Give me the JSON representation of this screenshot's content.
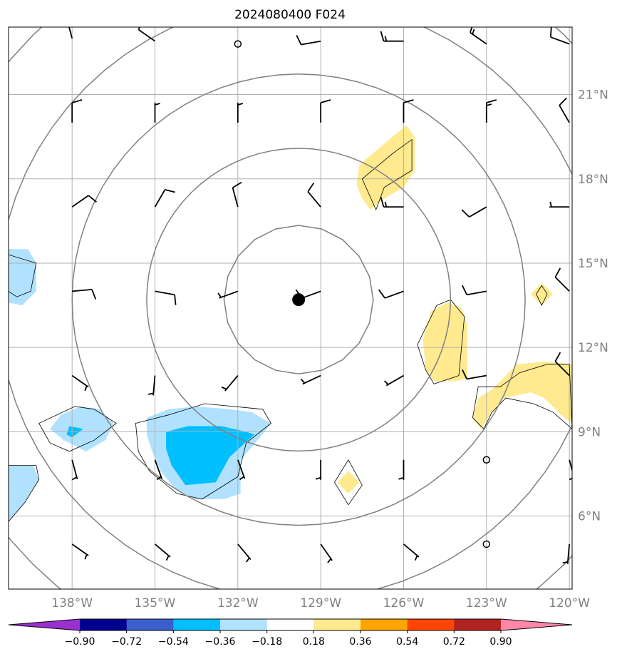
{
  "chart_data": {
    "type": "heatmap",
    "title": "2024080400 F024",
    "projection": "map with concentric range rings and wind barbs",
    "lon_range": [
      -140.3,
      -119.9
    ],
    "lat_range": [
      3.4,
      23.4
    ],
    "x_ticks": [
      {
        "value": -138,
        "label": "138°W"
      },
      {
        "value": -135,
        "label": "135°W"
      },
      {
        "value": -132,
        "label": "132°W"
      },
      {
        "value": -129,
        "label": "129°W"
      },
      {
        "value": -126,
        "label": "126°W"
      },
      {
        "value": -123,
        "label": "123°W"
      },
      {
        "value": -120,
        "label": "120°W"
      }
    ],
    "y_ticks": [
      {
        "value": 6,
        "label": "6°N"
      },
      {
        "value": 9,
        "label": "9°N"
      },
      {
        "value": 12,
        "label": "12°N"
      },
      {
        "value": 15,
        "label": "15°N"
      },
      {
        "value": 18,
        "label": "18°N"
      },
      {
        "value": 21,
        "label": "21°N"
      }
    ],
    "grid": true,
    "center_marker": {
      "lon": -129.8,
      "lat": 13.7
    },
    "range_ring_radii_deg": [
      2.7,
      5.5,
      8.2,
      10.9,
      13.6
    ],
    "colorbar": {
      "position": "bottom",
      "extend": "both",
      "levels": [
        -0.9,
        -0.72,
        -0.54,
        -0.36,
        -0.18,
        0.18,
        0.36,
        0.54,
        0.72,
        0.9
      ],
      "tick_labels": [
        "−0.90",
        "−0.72",
        "−0.54",
        "−0.36",
        "−0.18",
        "0.18",
        "0.36",
        "0.54",
        "0.72",
        "0.90"
      ],
      "colors": [
        "#9b30d0",
        "#000090",
        "#3a5fcd",
        "#00bfff",
        "#b0e2ff",
        "#ffffff",
        "#ffea8f",
        "#ffa500",
        "#ff4500",
        "#b22222",
        "#ff88aa"
      ]
    },
    "shaded_regions": [
      {
        "level": -0.18,
        "color": "#b0e2ff",
        "polygon": [
          [
            -140.3,
            15.5
          ],
          [
            -139.6,
            15.5
          ],
          [
            -139.3,
            15.0
          ],
          [
            -139.3,
            14.0
          ],
          [
            -139.8,
            13.5
          ],
          [
            -140.3,
            13.6
          ]
        ]
      },
      {
        "level": -0.18,
        "color": "#b0e2ff",
        "polygon": [
          [
            -138.4,
            9.6
          ],
          [
            -137.7,
            9.9
          ],
          [
            -137.0,
            9.8
          ],
          [
            -136.5,
            9.3
          ],
          [
            -136.8,
            8.7
          ],
          [
            -137.5,
            8.3
          ],
          [
            -138.3,
            8.7
          ],
          [
            -138.8,
            9.1
          ]
        ]
      },
      {
        "level": -0.36,
        "color": "#00bfff",
        "polygon": [
          [
            -138.1,
            9.2
          ],
          [
            -137.6,
            9.1
          ],
          [
            -138.0,
            8.8
          ],
          [
            -138.2,
            8.9
          ]
        ]
      },
      {
        "level": -0.18,
        "color": "#b0e2ff",
        "polygon": [
          [
            -135.3,
            9.5
          ],
          [
            -134.5,
            9.8
          ],
          [
            -133.5,
            9.9
          ],
          [
            -132.3,
            9.8
          ],
          [
            -131.5,
            9.7
          ],
          [
            -130.8,
            9.3
          ],
          [
            -131.2,
            8.8
          ],
          [
            -131.9,
            8.0
          ],
          [
            -131.9,
            6.8
          ],
          [
            -132.5,
            6.6
          ],
          [
            -133.5,
            6.6
          ],
          [
            -134.2,
            6.9
          ],
          [
            -134.8,
            7.6
          ],
          [
            -135.1,
            8.3
          ],
          [
            -135.3,
            8.9
          ]
        ]
      },
      {
        "level": -0.36,
        "color": "#00bfff",
        "polygon": [
          [
            -134.6,
            9.0
          ],
          [
            -133.8,
            9.2
          ],
          [
            -132.6,
            9.2
          ],
          [
            -131.7,
            9.0
          ],
          [
            -131.4,
            8.9
          ],
          [
            -132.3,
            8.1
          ],
          [
            -132.8,
            7.2
          ],
          [
            -133.9,
            7.1
          ],
          [
            -134.4,
            7.8
          ],
          [
            -134.6,
            8.4
          ]
        ]
      },
      {
        "level": -0.18,
        "color": "#b0e2ff",
        "polygon": [
          [
            -140.3,
            7.8
          ],
          [
            -139.4,
            7.8
          ],
          [
            -139.2,
            7.3
          ],
          [
            -139.7,
            6.5
          ],
          [
            -140.3,
            5.8
          ]
        ]
      },
      {
        "level": 0.18,
        "color": "#ffea8f",
        "polygon": [
          [
            -126.4,
            19.5
          ],
          [
            -125.9,
            19.9
          ],
          [
            -125.6,
            19.5
          ],
          [
            -125.6,
            18.3
          ],
          [
            -126.0,
            17.7
          ],
          [
            -126.7,
            17.3
          ],
          [
            -127.2,
            16.9
          ],
          [
            -127.5,
            17.3
          ],
          [
            -127.7,
            17.8
          ],
          [
            -127.6,
            18.5
          ],
          [
            -127.0,
            19.0
          ]
        ]
      },
      {
        "level": 0.18,
        "color": "#ffea8f",
        "polygon": [
          [
            -125.0,
            13.3
          ],
          [
            -124.4,
            13.6
          ],
          [
            -123.9,
            13.4
          ],
          [
            -123.7,
            12.8
          ],
          [
            -123.7,
            10.9
          ],
          [
            -124.1,
            10.8
          ],
          [
            -124.9,
            10.8
          ],
          [
            -125.2,
            11.2
          ],
          [
            -125.3,
            12.3
          ]
        ]
      },
      {
        "level": 0.18,
        "color": "#ffea8f",
        "polygon": [
          [
            -122.5,
            10.8
          ],
          [
            -121.9,
            11.4
          ],
          [
            -120.9,
            11.5
          ],
          [
            -120.0,
            11.4
          ],
          [
            -119.9,
            11.4
          ],
          [
            -119.9,
            9.3
          ],
          [
            -120.3,
            9.6
          ],
          [
            -120.9,
            10.2
          ],
          [
            -121.4,
            10.4
          ],
          [
            -122.4,
            10.2
          ],
          [
            -122.8,
            9.7
          ],
          [
            -123.2,
            9.1
          ],
          [
            -123.5,
            9.5
          ],
          [
            -123.3,
            10.2
          ],
          [
            -122.8,
            10.5
          ]
        ]
      },
      {
        "level": 0.18,
        "color": "#ffea8f",
        "polygon": [
          [
            -128.0,
            7.6
          ],
          [
            -127.6,
            7.2
          ],
          [
            -128.0,
            6.8
          ],
          [
            -128.4,
            7.2
          ]
        ]
      },
      {
        "level": 0.18,
        "color": "#ffea8f",
        "polygon": [
          [
            -121.0,
            14.3
          ],
          [
            -120.6,
            13.9
          ],
          [
            -121.0,
            13.5
          ],
          [
            -121.4,
            13.9
          ]
        ]
      }
    ],
    "outline_regions": [
      [
        [
          -140.3,
          15.3
        ],
        [
          -139.3,
          15.0
        ],
        [
          -139.5,
          14.0
        ],
        [
          -140.0,
          13.8
        ],
        [
          -140.3,
          14.0
        ]
      ],
      [
        [
          -137.9,
          9.9
        ],
        [
          -137.2,
          9.8
        ],
        [
          -136.4,
          9.3
        ],
        [
          -137.2,
          8.7
        ],
        [
          -138.1,
          8.3
        ],
        [
          -138.8,
          8.6
        ],
        [
          -139.2,
          9.3
        ]
      ],
      [
        [
          -135.7,
          9.3
        ],
        [
          -134.5,
          9.6
        ],
        [
          -133.2,
          10.0
        ],
        [
          -131.1,
          9.8
        ],
        [
          -130.8,
          9.3
        ],
        [
          -131.7,
          8.6
        ],
        [
          -132.0,
          7.4
        ],
        [
          -133.3,
          6.6
        ],
        [
          -134.2,
          6.8
        ],
        [
          -135.2,
          7.6
        ],
        [
          -135.6,
          8.3
        ]
      ],
      [
        [
          -140.3,
          7.8
        ],
        [
          -139.3,
          7.8
        ],
        [
          -139.2,
          7.3
        ],
        [
          -139.7,
          6.5
        ],
        [
          -140.3,
          5.8
        ]
      ],
      [
        [
          -127.5,
          18.0
        ],
        [
          -126.4,
          18.9
        ],
        [
          -125.7,
          19.4
        ],
        [
          -125.7,
          18.3
        ],
        [
          -126.7,
          17.7
        ],
        [
          -127.0,
          16.9
        ]
      ],
      [
        [
          -124.8,
          13.5
        ],
        [
          -124.3,
          13.7
        ],
        [
          -123.8,
          13.1
        ],
        [
          -124.0,
          11.0
        ],
        [
          -124.9,
          10.7
        ],
        [
          -125.2,
          11.2
        ],
        [
          -125.5,
          12.1
        ]
      ],
      [
        [
          -122.5,
          10.6
        ],
        [
          -121.8,
          11.1
        ],
        [
          -120.8,
          11.4
        ],
        [
          -120.0,
          11.4
        ],
        [
          -119.9,
          9.1
        ],
        [
          -120.6,
          9.7
        ],
        [
          -121.3,
          10.0
        ],
        [
          -122.3,
          10.2
        ],
        [
          -122.8,
          9.7
        ],
        [
          -123.1,
          9.1
        ],
        [
          -123.5,
          9.5
        ],
        [
          -123.3,
          10.6
        ]
      ],
      [
        [
          -128.0,
          8.0
        ],
        [
          -127.5,
          7.1
        ],
        [
          -128.0,
          6.4
        ],
        [
          -128.5,
          7.2
        ]
      ],
      [
        [
          -121.0,
          14.2
        ],
        [
          -120.8,
          13.9
        ],
        [
          -121.0,
          13.5
        ],
        [
          -121.2,
          13.9
        ]
      ]
    ],
    "wind_barbs": [
      {
        "lon": -138,
        "lat": 23.0,
        "dir": 345,
        "speed": 10
      },
      {
        "lon": -135,
        "lat": 22.9,
        "dir": 305,
        "speed": 10
      },
      {
        "lon": -132,
        "lat": 22.8,
        "dir": null,
        "speed": 0
      },
      {
        "lon": -129,
        "lat": 22.9,
        "dir": 260,
        "speed": 10
      },
      {
        "lon": -126,
        "lat": 22.9,
        "dir": 270,
        "speed": 15
      },
      {
        "lon": -123,
        "lat": 22.8,
        "dir": 305,
        "speed": 15
      },
      {
        "lon": -120,
        "lat": 22.8,
        "dir": 290,
        "speed": 10
      },
      {
        "lon": -138,
        "lat": 20.0,
        "dir": 360,
        "speed": 10
      },
      {
        "lon": -135,
        "lat": 20.0,
        "dir": 360,
        "speed": 5
      },
      {
        "lon": -132,
        "lat": 20.0,
        "dir": 360,
        "speed": 5
      },
      {
        "lon": -129,
        "lat": 20.0,
        "dir": 360,
        "speed": 10
      },
      {
        "lon": -126,
        "lat": 20.0,
        "dir": 360,
        "speed": 10
      },
      {
        "lon": -123,
        "lat": 20.0,
        "dir": 360,
        "speed": 15
      },
      {
        "lon": -120,
        "lat": 20.0,
        "dir": 330,
        "speed": 10
      },
      {
        "lon": -138,
        "lat": 17.0,
        "dir": 55,
        "speed": 10
      },
      {
        "lon": -135,
        "lat": 17.0,
        "dir": 30,
        "speed": 10
      },
      {
        "lon": -132,
        "lat": 17.0,
        "dir": 345,
        "speed": 10
      },
      {
        "lon": -129,
        "lat": 17.0,
        "dir": 320,
        "speed": 10
      },
      {
        "lon": -126,
        "lat": 17.0,
        "dir": 270,
        "speed": 15
      },
      {
        "lon": -123,
        "lat": 17.0,
        "dir": 240,
        "speed": 10
      },
      {
        "lon": -120,
        "lat": 17.0,
        "dir": 270,
        "speed": 5
      },
      {
        "lon": -138,
        "lat": 14.0,
        "dir": 85,
        "speed": 10
      },
      {
        "lon": -135,
        "lat": 14.0,
        "dir": 100,
        "speed": 10
      },
      {
        "lon": -132,
        "lat": 14.0,
        "dir": 250,
        "speed": 5
      },
      {
        "lon": -129,
        "lat": 14.0,
        "dir": 250,
        "speed": 10
      },
      {
        "lon": -126,
        "lat": 14.0,
        "dir": 250,
        "speed": 10
      },
      {
        "lon": -123,
        "lat": 14.0,
        "dir": 260,
        "speed": 10
      },
      {
        "lon": -120,
        "lat": 14.0,
        "dir": 315,
        "speed": 10
      },
      {
        "lon": -138,
        "lat": 11.0,
        "dir": 125,
        "speed": 5
      },
      {
        "lon": -135,
        "lat": 11.0,
        "dir": 185,
        "speed": 5
      },
      {
        "lon": -132,
        "lat": 11.0,
        "dir": 220,
        "speed": 5
      },
      {
        "lon": -129,
        "lat": 11.0,
        "dir": 245,
        "speed": 5
      },
      {
        "lon": -126,
        "lat": 11.0,
        "dir": 240,
        "speed": 5
      },
      {
        "lon": -123,
        "lat": 11.0,
        "dir": 260,
        "speed": 10
      },
      {
        "lon": -120,
        "lat": 11.0,
        "dir": 315,
        "speed": 10
      },
      {
        "lon": -138,
        "lat": 8.0,
        "dir": 165,
        "speed": 5
      },
      {
        "lon": -135,
        "lat": 8.0,
        "dir": 160,
        "speed": 5
      },
      {
        "lon": -132,
        "lat": 8.0,
        "dir": 160,
        "speed": 5
      },
      {
        "lon": -129,
        "lat": 8.0,
        "dir": 180,
        "speed": 5
      },
      {
        "lon": -126,
        "lat": 8.0,
        "dir": 180,
        "speed": 5
      },
      {
        "lon": -123,
        "lat": 8.0,
        "dir": null,
        "speed": 0
      },
      {
        "lon": -120,
        "lat": 8.0,
        "dir": 165,
        "speed": 5
      },
      {
        "lon": -138,
        "lat": 5.0,
        "dir": 125,
        "speed": 5
      },
      {
        "lon": -135,
        "lat": 5.0,
        "dir": 130,
        "speed": 5
      },
      {
        "lon": -132,
        "lat": 5.0,
        "dir": 140,
        "speed": 5
      },
      {
        "lon": -129,
        "lat": 5.0,
        "dir": 145,
        "speed": 5
      },
      {
        "lon": -126,
        "lat": 5.0,
        "dir": 130,
        "speed": 5
      },
      {
        "lon": -123,
        "lat": 5.0,
        "dir": null,
        "speed": 0
      },
      {
        "lon": -120,
        "lat": 5.0,
        "dir": 185,
        "speed": 5
      }
    ]
  },
  "colors": {
    "ring": "#808080",
    "grid": "#b0b0b0",
    "axis_frame": "#000000",
    "tick_text": "#808080"
  }
}
